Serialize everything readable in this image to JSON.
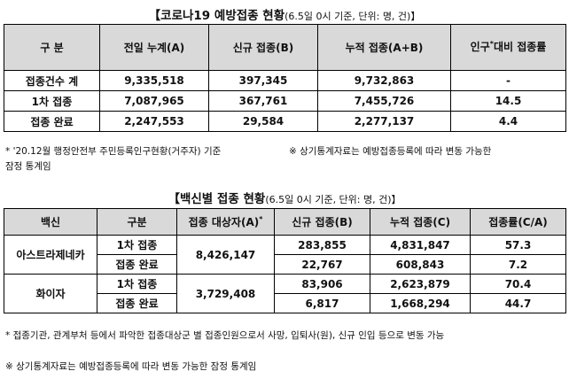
{
  "table1": {
    "title": "【코로나19 예방접종 현황",
    "title_sub": "(6.5일 0시 기준, 단위: 명, 건)】",
    "headers": [
      "구 분",
      "전일 누계(A)",
      "신규 접종(B)",
      "누적 접종(A+B)",
      "인구",
      "*",
      "대비 접종률"
    ],
    "rows": [
      {
        "label": "접종건수 계",
        "a": "9,335,518",
        "b": "397,345",
        "ab": "9,732,863",
        "rate": "-"
      },
      {
        "label": "1차 접종",
        "a": "7,087,965",
        "b": "367,761",
        "ab": "7,455,726",
        "rate": "14.5"
      },
      {
        "label": "접종 완료",
        "a": "2,247,553",
        "b": "29,584",
        "ab": "2,277,137",
        "rate": "4.4"
      }
    ],
    "note1": "* '20.12월 행정안전부 주민등록인구현황(거주자) 기준",
    "note2": "※ 상기통계자료는 예방접종등록에 따라 변동 가능한",
    "note3": "잠정 통계임"
  },
  "table2": {
    "title": "【백신별 접종 현황",
    "title_sub": "(6.5일 0시 기준, 단위: 명, 건)】",
    "headers": [
      "백신",
      "구분",
      "접종 대상자(A)",
      "*",
      "신규 접종(B)",
      "누적 접종(C)",
      "접종률(C/A)"
    ],
    "vaccines": [
      {
        "name": "아스트라제네카",
        "target": "8,426,147",
        "rows": [
          {
            "type": "1차 접종",
            "new": "283,855",
            "cum": "4,831,847",
            "rate": "57.3"
          },
          {
            "type": "접종 완료",
            "new": "22,767",
            "cum": "608,843",
            "rate": "7.2"
          }
        ]
      },
      {
        "name": "화이자",
        "target": "3,729,408",
        "rows": [
          {
            "type": "1차 접종",
            "new": "83,906",
            "cum": "2,623,879",
            "rate": "70.4"
          },
          {
            "type": "접종 완료",
            "new": "6,817",
            "cum": "1,668,294",
            "rate": "44.7"
          }
        ]
      }
    ],
    "note1": "* 접종기관, 관계부처 등에서 파악한 접종대상군 별 접종인원으로서 사망, 입퇴사(원), 신규 인입 등으로 변동 가능",
    "note2": "※ 상기통계자료는 예방접종등록에 따라 변동 가능한 잠정 통계임"
  }
}
